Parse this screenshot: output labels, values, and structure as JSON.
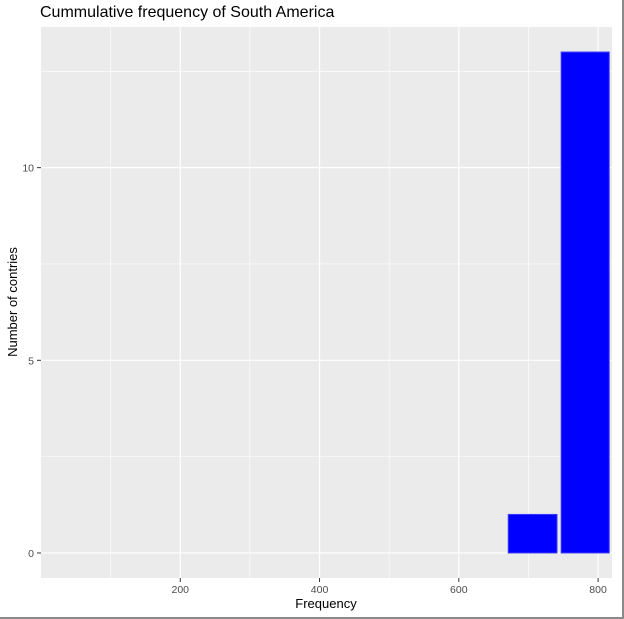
{
  "chart_data": {
    "type": "bar",
    "title": "Cummulative frequency of South America",
    "xlabel": "Frequency",
    "ylabel": "Number of contries",
    "bins": [
      {
        "x_start": 671,
        "x_end": 741,
        "count": 1
      },
      {
        "x_start": 747,
        "x_end": 816,
        "count": 13
      }
    ],
    "xlim": [
      0,
      820
    ],
    "ylim": [
      -0.65,
      13.65
    ],
    "x_ticks": [
      200,
      400,
      600,
      800
    ],
    "y_ticks": [
      0,
      5,
      10
    ],
    "grid": true,
    "bar_color": "#0000ff",
    "panel_color": "#ebebeb",
    "grid_color": "#ffffff"
  }
}
